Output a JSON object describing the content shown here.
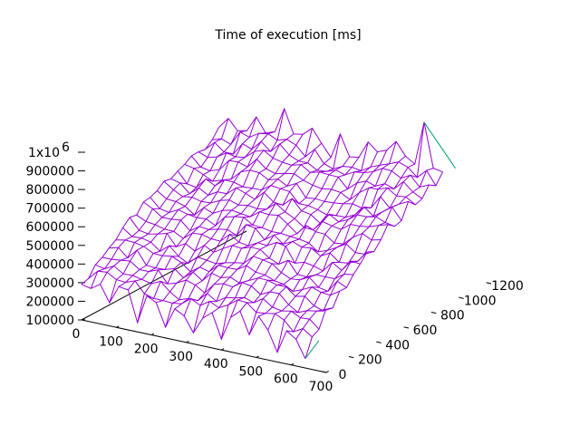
{
  "chart_data": {
    "type": "surface",
    "title": "Time of execution [ms]",
    "series_colors": {
      "top": "#9400d3",
      "bottom": "#009e73"
    },
    "x_axis": {
      "ticks": [
        "0",
        "100",
        "200",
        "300",
        "400",
        "500",
        "600",
        "700"
      ],
      "range": [
        0,
        700
      ]
    },
    "y_axis": {
      "ticks": [
        "0",
        "200",
        "400",
        "600",
        "800",
        "1000",
        "1200"
      ],
      "range": [
        0,
        1200
      ]
    },
    "z_axis": {
      "ticks": [
        "100000",
        "200000",
        "300000",
        "400000",
        "500000",
        "600000",
        "700000",
        "800000",
        "900000"
      ],
      "top_tick_base": "1x10",
      "top_tick_exp": "6",
      "range": [
        100000,
        1000000
      ]
    },
    "grid": false,
    "surface_description_values": {
      "x_extent": [
        0,
        640
      ],
      "y_extent": [
        0,
        1000
      ],
      "z_typical_range": [
        200000,
        900000
      ],
      "z_peak": 1000000
    }
  }
}
